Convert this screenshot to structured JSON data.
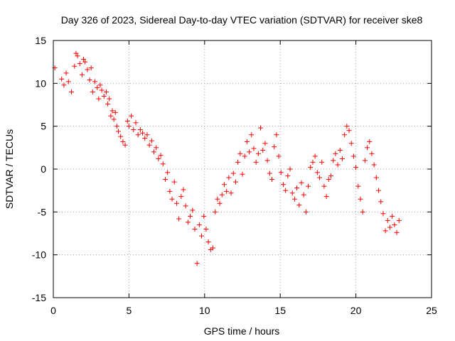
{
  "chart_data": {
    "type": "scatter",
    "title": "Day 326 of 2023, Sidereal Day-to-day VTEC variation (SDTVAR) for receiver ske8",
    "xlabel": "GPS time / hours",
    "ylabel": "SDTVAR / TECUs",
    "xlim": [
      0,
      25
    ],
    "ylim": [
      -15,
      15
    ],
    "x_ticks": [
      0,
      5,
      10,
      15,
      20,
      25
    ],
    "y_ticks": [
      -15,
      -10,
      -5,
      0,
      5,
      10,
      15
    ],
    "x_tick_labels": [
      "0",
      "5",
      "10",
      "15",
      "20",
      "25"
    ],
    "y_tick_labels": [
      "-15",
      "-10",
      "-5",
      "0",
      "5",
      "10",
      "15"
    ],
    "grid": true,
    "marker": "+",
    "color": "#ff0000",
    "series": [
      {
        "name": "SDTVAR",
        "x": [
          0.1,
          0.55,
          0.7,
          0.85,
          1.0,
          1.2,
          1.4,
          1.5,
          1.6,
          1.75,
          1.9,
          2.0,
          2.1,
          2.25,
          2.4,
          2.5,
          2.6,
          2.75,
          2.9,
          3.0,
          3.1,
          3.2,
          3.35,
          3.5,
          3.6,
          3.7,
          3.8,
          3.9,
          4.0,
          4.1,
          4.2,
          4.3,
          4.45,
          4.6,
          4.75,
          4.9,
          5.0,
          5.15,
          5.3,
          5.45,
          5.6,
          5.75,
          5.9,
          6.05,
          6.2,
          6.35,
          6.5,
          6.65,
          6.8,
          6.95,
          7.1,
          7.25,
          7.4,
          7.55,
          7.7,
          7.85,
          8.0,
          8.15,
          8.3,
          8.45,
          8.6,
          8.75,
          8.9,
          9.05,
          9.2,
          9.35,
          9.5,
          9.65,
          9.8,
          9.95,
          10.1,
          10.25,
          10.4,
          10.55,
          10.7,
          10.85,
          11.0,
          11.15,
          11.3,
          11.45,
          11.6,
          11.75,
          11.9,
          12.05,
          12.2,
          12.35,
          12.5,
          12.65,
          12.8,
          12.95,
          13.1,
          13.25,
          13.4,
          13.55,
          13.7,
          13.85,
          14.0,
          14.15,
          14.3,
          14.45,
          14.6,
          14.75,
          14.9,
          15.05,
          15.2,
          15.35,
          15.5,
          15.65,
          15.8,
          15.95,
          16.1,
          16.25,
          16.4,
          16.55,
          16.7,
          16.85,
          17.0,
          17.15,
          17.3,
          17.45,
          17.6,
          17.75,
          17.9,
          18.05,
          18.2,
          18.35,
          18.5,
          18.65,
          18.8,
          18.95,
          19.1,
          19.25,
          19.4,
          19.55,
          19.7,
          19.85,
          20.0,
          20.15,
          20.3,
          20.45,
          20.6,
          20.75,
          20.9,
          21.05,
          21.2,
          21.35,
          21.5,
          21.65,
          21.8,
          21.95,
          22.1,
          22.25,
          22.4,
          22.55,
          22.7,
          22.85
        ],
        "y": [
          11.8,
          10.5,
          9.8,
          11.2,
          10.2,
          9.0,
          12.0,
          13.5,
          13.2,
          12.3,
          11.0,
          12.8,
          12.5,
          11.6,
          10.4,
          11.8,
          9.0,
          10.2,
          9.5,
          8.2,
          9.8,
          9.2,
          8.5,
          9.0,
          7.6,
          8.2,
          6.2,
          6.8,
          5.8,
          6.6,
          5.0,
          4.4,
          3.8,
          3.2,
          2.8,
          5.6,
          5.0,
          6.2,
          4.6,
          5.4,
          4.0,
          4.6,
          4.2,
          3.6,
          4.0,
          2.8,
          3.3,
          2.0,
          2.5,
          1.2,
          1.6,
          0.6,
          -1.2,
          -0.4,
          -2.6,
          -3.5,
          -1.5,
          -4.0,
          -5.8,
          -3.2,
          -2.4,
          -4.3,
          -6.2,
          -5.5,
          -4.8,
          -7.0,
          -11.0,
          -6.5,
          -7.8,
          -5.5,
          -7.0,
          -8.5,
          -9.4,
          -9.2,
          -5.0,
          -3.5,
          -4.0,
          -3.0,
          -1.8,
          -2.6,
          -1.0,
          -2.8,
          -0.5,
          -1.5,
          0.8,
          1.8,
          -0.6,
          1.5,
          3.2,
          2.0,
          4.0,
          2.4,
          0.8,
          1.8,
          4.8,
          2.2,
          3.0,
          1.0,
          -0.5,
          -1.2,
          2.6,
          4.0,
          1.5,
          -0.4,
          -1.8,
          -2.5,
          -0.8,
          0.0,
          -2.8,
          -3.5,
          -2.2,
          -4.2,
          -1.6,
          -3.0,
          -5.0,
          -2.0,
          0.2,
          0.8,
          1.5,
          -0.4,
          -1.0,
          0.8,
          -2.0,
          -3.2,
          -1.2,
          -0.8,
          1.0,
          1.8,
          0.5,
          2.2,
          1.2,
          4.0,
          5.0,
          4.5,
          3.0,
          1.5,
          0.2,
          -2.0,
          -3.5,
          -5.0,
          1.0,
          2.5,
          3.2,
          1.8,
          0.5,
          -1.0,
          -2.5,
          -3.8,
          -5.2,
          -7.2,
          -6.0,
          -6.8,
          -5.5,
          -6.5,
          -7.4,
          -6.0
        ]
      }
    ]
  }
}
